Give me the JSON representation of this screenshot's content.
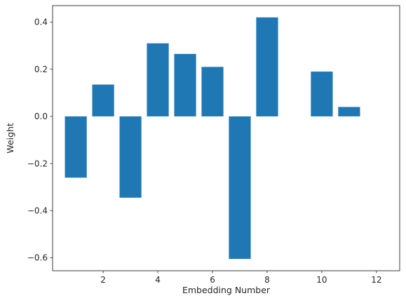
{
  "chart_data": {
    "type": "bar",
    "title": "",
    "xlabel": "Embedding Number",
    "ylabel": "Weight",
    "x": [
      1,
      2,
      3,
      4,
      5,
      6,
      7,
      8,
      9,
      10,
      11,
      12
    ],
    "values": [
      -0.26,
      0.135,
      -0.345,
      0.31,
      0.265,
      0.21,
      -0.605,
      0.42,
      0.0,
      0.19,
      0.04,
      0.0
    ],
    "xlim": [
      0.15,
      12.85
    ],
    "ylim": [
      -0.655,
      0.47
    ],
    "xticks": [
      2,
      4,
      6,
      8,
      10,
      12
    ],
    "yticks": [
      -0.6,
      -0.4,
      -0.2,
      0.0,
      0.2,
      0.4
    ],
    "xtick_labels": [
      "2",
      "4",
      "6",
      "8",
      "10",
      "12"
    ],
    "ytick_labels": [
      "−0.6",
      "−0.4",
      "−0.2",
      "0.0",
      "0.2",
      "0.4"
    ],
    "bar_color": "#1f77b4",
    "grid": false
  }
}
